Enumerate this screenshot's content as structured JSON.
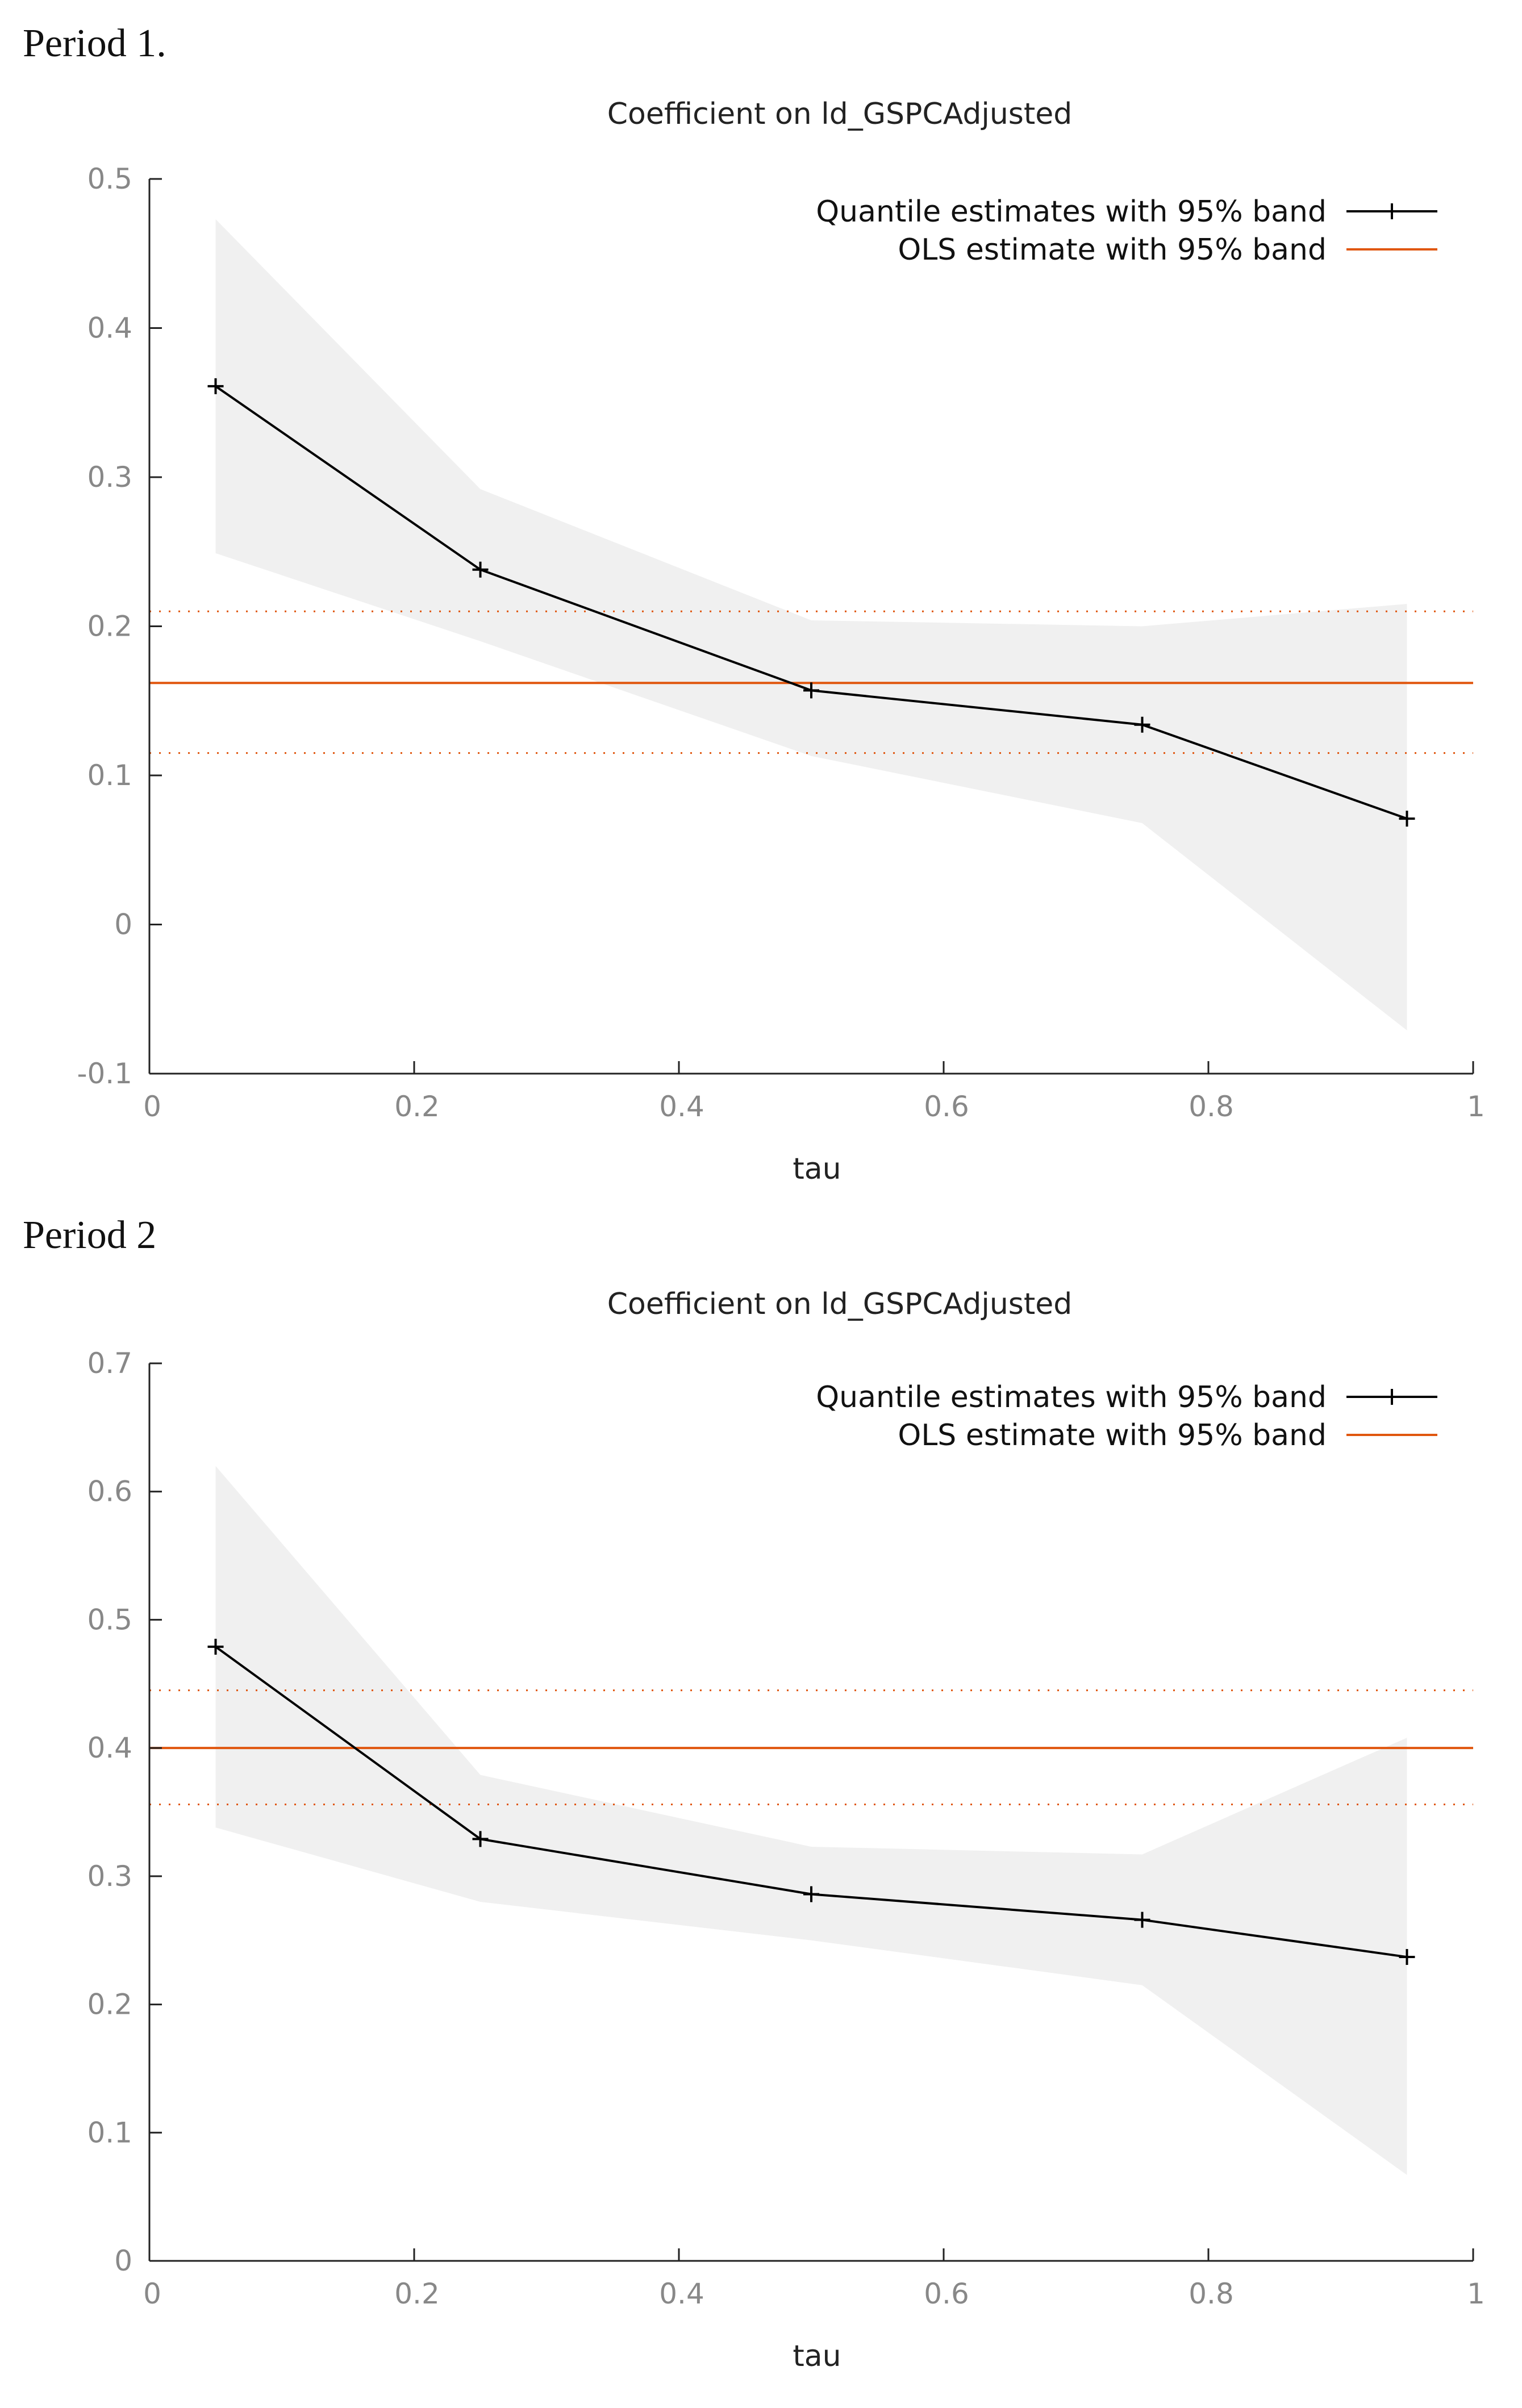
{
  "periods": [
    {
      "label": "Period 1."
    },
    {
      "label": "Period 2"
    }
  ],
  "colors": {
    "band": "#f0f0f0",
    "quantile_line": "#000000",
    "ols": "#e0560e",
    "axis": "#222222",
    "tick_text": "#888888"
  },
  "chart_data": [
    {
      "type": "line",
      "title": "Coefficient on ld_GSPCAdjusted",
      "xlabel": "tau",
      "ylabel": "",
      "xlim": [
        0,
        1
      ],
      "ylim": [
        -0.1,
        0.5
      ],
      "x_ticks": [
        0,
        0.2,
        0.4,
        0.6,
        0.8,
        1
      ],
      "x_tick_labels": [
        "0",
        "0.2",
        "0.4",
        "0.6",
        "0.8",
        "1"
      ],
      "y_ticks": [
        -0.1,
        0,
        0.1,
        0.2,
        0.3,
        0.4,
        0.5
      ],
      "y_tick_labels": [
        "-0.1",
        "0",
        "0.1",
        "0.2",
        "0.3",
        "0.4",
        "0.5"
      ],
      "legend_position": "top-right",
      "series": [
        {
          "name": "Quantile estimates with 95% band",
          "x": [
            0.05,
            0.25,
            0.5,
            0.75,
            0.95
          ],
          "values": [
            0.361,
            0.238,
            0.157,
            0.134,
            0.071
          ],
          "lower": [
            0.249,
            0.19,
            0.113,
            0.068,
            -0.071
          ],
          "upper": [
            0.473,
            0.292,
            0.204,
            0.2,
            0.215
          ]
        },
        {
          "name": "OLS estimate with 95% band",
          "value": 0.162,
          "lower": 0.115,
          "upper": 0.21
        }
      ]
    },
    {
      "type": "line",
      "title": "Coefficient on ld_GSPCAdjusted",
      "xlabel": "tau",
      "ylabel": "",
      "xlim": [
        0,
        1
      ],
      "ylim": [
        0,
        0.7
      ],
      "x_ticks": [
        0,
        0.2,
        0.4,
        0.6,
        0.8,
        1
      ],
      "x_tick_labels": [
        "0",
        "0.2",
        "0.4",
        "0.6",
        "0.8",
        "1"
      ],
      "y_ticks": [
        0,
        0.1,
        0.2,
        0.3,
        0.4,
        0.5,
        0.6,
        0.7
      ],
      "y_tick_labels": [
        "0",
        "0.1",
        "0.2",
        "0.3",
        "0.4",
        "0.5",
        "0.6",
        "0.7"
      ],
      "legend_position": "top-right",
      "series": [
        {
          "name": "Quantile estimates with 95% band",
          "x": [
            0.05,
            0.25,
            0.5,
            0.75,
            0.95
          ],
          "values": [
            0.479,
            0.329,
            0.286,
            0.266,
            0.237
          ],
          "lower": [
            0.338,
            0.28,
            0.25,
            0.215,
            0.067
          ],
          "upper": [
            0.62,
            0.379,
            0.323,
            0.317,
            0.408
          ]
        },
        {
          "name": "OLS estimate with 95% band",
          "value": 0.4,
          "lower": 0.356,
          "upper": 0.445
        }
      ]
    }
  ]
}
